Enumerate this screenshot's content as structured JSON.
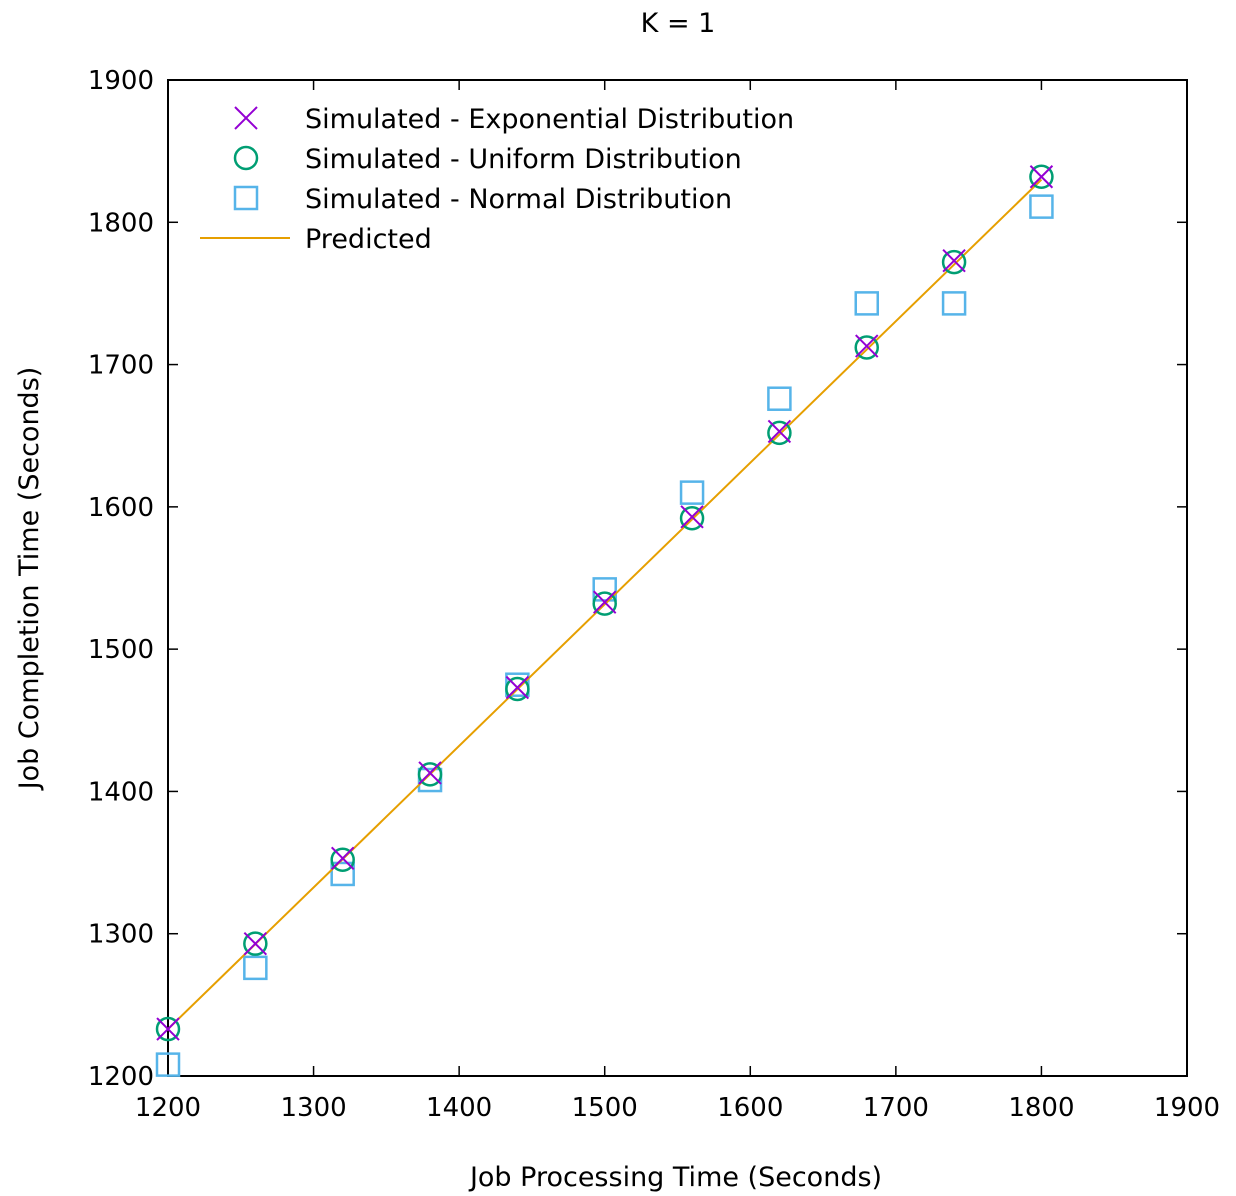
{
  "chart_data": {
    "type": "scatter",
    "title": "K = 1",
    "xlabel": "Job Processing Time (Seconds)",
    "ylabel": "Job Completion Time (Seconds)",
    "xlim": [
      1200,
      1900
    ],
    "ylim": [
      1200,
      1900
    ],
    "xticks": [
      1200,
      1300,
      1400,
      1500,
      1600,
      1700,
      1800,
      1900
    ],
    "yticks": [
      1200,
      1300,
      1400,
      1500,
      1600,
      1700,
      1800,
      1900
    ],
    "grid": false,
    "legend_position": "top-left",
    "series": [
      {
        "name": "Simulated - Exponential Distribution",
        "marker": "x",
        "color": "#9400d3",
        "x": [
          1200,
          1260,
          1320,
          1380,
          1440,
          1500,
          1560,
          1620,
          1680,
          1740,
          1800
        ],
        "y": [
          1233,
          1293,
          1353,
          1413,
          1473,
          1533,
          1593,
          1653,
          1713,
          1773,
          1832
        ]
      },
      {
        "name": "Simulated - Uniform Distribution",
        "marker": "circle",
        "color": "#009e73",
        "x": [
          1200,
          1260,
          1320,
          1380,
          1440,
          1500,
          1560,
          1620,
          1680,
          1740,
          1800
        ],
        "y": [
          1233,
          1293,
          1352,
          1412,
          1472,
          1532,
          1592,
          1652,
          1712,
          1772,
          1832
        ]
      },
      {
        "name": "Simulated - Normal Distribution",
        "marker": "square",
        "color": "#56b4e9",
        "x": [
          1200,
          1260,
          1320,
          1380,
          1440,
          1500,
          1560,
          1620,
          1680,
          1740,
          1800
        ],
        "y": [
          1208,
          1276,
          1342,
          1408,
          1475,
          1542,
          1610,
          1676,
          1743,
          1743,
          1811
        ]
      },
      {
        "name": "Predicted",
        "marker": "line",
        "color": "#e69f00",
        "x": [
          1200,
          1800
        ],
        "y": [
          1233,
          1830
        ]
      }
    ]
  }
}
